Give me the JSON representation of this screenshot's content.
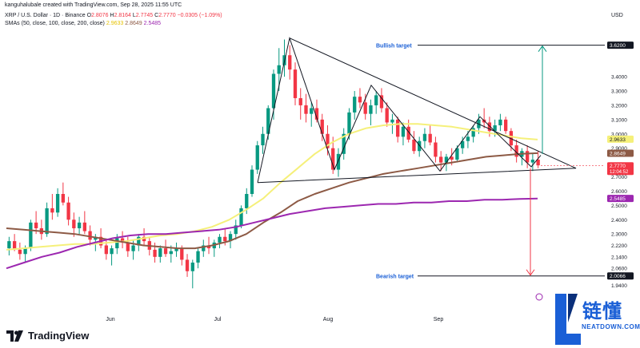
{
  "header": {
    "author_line": "kanguhalubale created with TradingView.com, Sep 28, 2025 11:55 UTC",
    "symbol": "XRP / U.S. Dollar · 1D · Binance",
    "o_label": "O",
    "o_value": "2.8076",
    "h_label": "H",
    "h_value": "2.8164",
    "l_label": "L",
    "l_value": "2.7745",
    "c_label": "C",
    "c_value": "2.7770",
    "change": "−0.0305 (−1.09%)",
    "sma_label": "SMAs (50, close, 100, close, 200, close)",
    "sma50_value": "2.9633",
    "sma100_value": "2.8649",
    "sma200_value": "2.5485"
  },
  "currency": "USD",
  "brand": {
    "name": "TradingView",
    "watermark_cn": "链懂",
    "watermark_en": "NEATDOWN.COM"
  },
  "colors": {
    "up": "#089981",
    "down": "#f23645",
    "sma50": "#f5f07a",
    "sma100": "#8d5a45",
    "sma200": "#9c27b0",
    "target_arrow_up": "#089981",
    "target_arrow_down": "#f23645"
  },
  "chart_data": {
    "type": "candlestick",
    "title": "",
    "y_axis": {
      "scale": "linear",
      "ticks": [
        "3.4000",
        "3.3000",
        "3.2000",
        "3.1000",
        "3.0000",
        "2.9000",
        "2.7000",
        "2.6000",
        "2.5000",
        "2.4000",
        "2.3000",
        "2.2200",
        "2.1400",
        "2.0600",
        "1.9400"
      ],
      "ylim": [
        1.86,
        3.78
      ]
    },
    "x_axis": {
      "ticks": [
        "Jun",
        "Jul",
        "Aug",
        "Sep"
      ]
    },
    "price_labels": [
      {
        "name": "bullish_target",
        "value": "3.6200",
        "text": "Bullish target",
        "price": 3.62,
        "style": "dark"
      },
      {
        "name": "sma50",
        "value": "2.9633",
        "price": 2.9633,
        "style": "yellow"
      },
      {
        "name": "sma100",
        "value": "2.8649",
        "price": 2.8649,
        "style": "brown"
      },
      {
        "name": "last_price",
        "value": "2.7770",
        "sub": "12:04:52",
        "price": 2.777,
        "style": "red"
      },
      {
        "name": "sma200",
        "value": "2.5485",
        "price": 2.5485,
        "style": "purple"
      },
      {
        "name": "bearish_target",
        "value": "2.0066",
        "text": "Bearish target",
        "price": 2.0066,
        "style": "dark"
      }
    ],
    "series": {
      "ohlc_daily_approx": [
        [
          2.2,
          2.28,
          2.15,
          2.25
        ],
        [
          2.25,
          2.3,
          2.18,
          2.19
        ],
        [
          2.19,
          2.24,
          2.12,
          2.16
        ],
        [
          2.16,
          2.22,
          2.1,
          2.2
        ],
        [
          2.2,
          2.4,
          2.18,
          2.38
        ],
        [
          2.38,
          2.46,
          2.3,
          2.34
        ],
        [
          2.34,
          2.4,
          2.26,
          2.3
        ],
        [
          2.3,
          2.52,
          2.28,
          2.48
        ],
        [
          2.48,
          2.58,
          2.4,
          2.45
        ],
        [
          2.45,
          2.62,
          2.42,
          2.58
        ],
        [
          2.58,
          2.66,
          2.5,
          2.52
        ],
        [
          2.52,
          2.56,
          2.36,
          2.4
        ],
        [
          2.4,
          2.45,
          2.28,
          2.34
        ],
        [
          2.34,
          2.42,
          2.3,
          2.38
        ],
        [
          2.38,
          2.46,
          2.3,
          2.32
        ],
        [
          2.32,
          2.36,
          2.22,
          2.26
        ],
        [
          2.26,
          2.3,
          2.18,
          2.28
        ],
        [
          2.28,
          2.34,
          2.2,
          2.22
        ],
        [
          2.22,
          2.26,
          2.12,
          2.16
        ],
        [
          2.16,
          2.22,
          2.08,
          2.2
        ],
        [
          2.2,
          2.3,
          2.16,
          2.27
        ],
        [
          2.27,
          2.32,
          2.2,
          2.24
        ],
        [
          2.24,
          2.28,
          2.14,
          2.18
        ],
        [
          2.18,
          2.26,
          2.12,
          2.22
        ],
        [
          2.22,
          2.3,
          2.18,
          2.28
        ],
        [
          2.28,
          2.34,
          2.22,
          2.25
        ],
        [
          2.25,
          2.28,
          2.15,
          2.19
        ],
        [
          2.19,
          2.24,
          2.1,
          2.14
        ],
        [
          2.14,
          2.22,
          2.1,
          2.2
        ],
        [
          2.2,
          2.26,
          2.14,
          2.16
        ],
        [
          2.16,
          2.22,
          2.1,
          2.18
        ],
        [
          2.18,
          2.24,
          2.14,
          2.2
        ],
        [
          2.2,
          2.22,
          2.08,
          2.12
        ],
        [
          2.12,
          2.16,
          2.0,
          2.04
        ],
        [
          2.04,
          2.12,
          1.92,
          2.1
        ],
        [
          2.1,
          2.2,
          2.06,
          2.18
        ],
        [
          2.18,
          2.26,
          2.14,
          2.22
        ],
        [
          2.22,
          2.28,
          2.16,
          2.2
        ],
        [
          2.2,
          2.26,
          2.14,
          2.24
        ],
        [
          2.24,
          2.3,
          2.2,
          2.28
        ],
        [
          2.28,
          2.34,
          2.22,
          2.25
        ],
        [
          2.25,
          2.32,
          2.2,
          2.3
        ],
        [
          2.3,
          2.4,
          2.26,
          2.36
        ],
        [
          2.36,
          2.5,
          2.34,
          2.48
        ],
        [
          2.48,
          2.62,
          2.44,
          2.58
        ],
        [
          2.58,
          2.78,
          2.56,
          2.75
        ],
        [
          2.75,
          2.95,
          2.72,
          2.92
        ],
        [
          2.92,
          3.05,
          2.86,
          3.0
        ],
        [
          3.0,
          3.2,
          2.96,
          3.18
        ],
        [
          3.18,
          3.45,
          3.1,
          3.42
        ],
        [
          3.42,
          3.6,
          3.3,
          3.48
        ],
        [
          3.48,
          3.66,
          3.4,
          3.55
        ],
        [
          3.55,
          3.62,
          3.38,
          3.45
        ],
        [
          3.45,
          3.5,
          3.2,
          3.25
        ],
        [
          3.25,
          3.32,
          3.1,
          3.2
        ],
        [
          3.2,
          3.28,
          3.08,
          3.14
        ],
        [
          3.14,
          3.22,
          3.05,
          3.18
        ],
        [
          3.18,
          3.24,
          3.08,
          3.1
        ],
        [
          3.1,
          3.14,
          2.95,
          3.0
        ],
        [
          3.0,
          3.06,
          2.85,
          2.9
        ],
        [
          2.9,
          2.98,
          2.72,
          2.75
        ],
        [
          2.75,
          2.9,
          2.7,
          2.86
        ],
        [
          2.86,
          3.04,
          2.82,
          3.0
        ],
        [
          3.0,
          3.18,
          2.96,
          3.15
        ],
        [
          3.15,
          3.3,
          3.1,
          3.26
        ],
        [
          3.26,
          3.32,
          3.18,
          3.22
        ],
        [
          3.22,
          3.28,
          3.1,
          3.14
        ],
        [
          3.14,
          3.24,
          3.06,
          3.2
        ],
        [
          3.2,
          3.3,
          3.14,
          3.27
        ],
        [
          3.27,
          3.32,
          3.15,
          3.18
        ],
        [
          3.18,
          3.22,
          3.05,
          3.08
        ],
        [
          3.08,
          3.14,
          3.0,
          3.1
        ],
        [
          3.1,
          3.12,
          2.94,
          2.98
        ],
        [
          2.98,
          3.08,
          2.92,
          3.05
        ],
        [
          3.05,
          3.1,
          2.94,
          2.96
        ],
        [
          2.96,
          3.02,
          2.86,
          2.88
        ],
        [
          2.88,
          2.98,
          2.84,
          2.95
        ],
        [
          2.95,
          3.04,
          2.9,
          3.0
        ],
        [
          3.0,
          3.06,
          2.92,
          2.94
        ],
        [
          2.94,
          2.98,
          2.8,
          2.84
        ],
        [
          2.84,
          2.88,
          2.74,
          2.8
        ],
        [
          2.8,
          2.86,
          2.74,
          2.84
        ],
        [
          2.84,
          2.9,
          2.78,
          2.82
        ],
        [
          2.82,
          2.92,
          2.8,
          2.9
        ],
        [
          2.9,
          2.98,
          2.86,
          2.95
        ],
        [
          2.95,
          3.02,
          2.9,
          2.98
        ],
        [
          2.98,
          3.06,
          2.94,
          3.04
        ],
        [
          3.04,
          3.14,
          3.0,
          3.1
        ],
        [
          3.1,
          3.18,
          3.04,
          3.08
        ],
        [
          3.08,
          3.12,
          2.98,
          3.02
        ],
        [
          3.02,
          3.1,
          2.98,
          3.06
        ],
        [
          3.06,
          3.14,
          3.02,
          3.1
        ],
        [
          3.1,
          3.12,
          3.0,
          3.02
        ],
        [
          3.02,
          3.04,
          2.88,
          2.92
        ],
        [
          2.92,
          2.96,
          2.8,
          2.84
        ],
        [
          2.84,
          2.9,
          2.78,
          2.88
        ],
        [
          2.88,
          2.92,
          2.76,
          2.8
        ],
        [
          2.8,
          2.86,
          2.74,
          2.82
        ],
        [
          2.82,
          2.88,
          2.76,
          2.78
        ]
      ]
    },
    "sma_curves_approx": {
      "sma50": [
        2.19,
        2.2,
        2.21,
        2.22,
        2.23,
        2.23,
        2.24,
        2.25,
        2.27,
        2.29,
        2.3,
        2.32,
        2.35,
        2.4,
        2.47,
        2.55,
        2.66,
        2.76,
        2.86,
        2.94,
        3.0,
        3.04,
        3.06,
        3.07,
        3.07,
        3.06,
        3.05,
        3.03,
        3.01,
        2.99,
        2.97,
        2.96
      ],
      "sma100": [
        2.34,
        2.33,
        2.32,
        2.31,
        2.3,
        2.28,
        2.26,
        2.24,
        2.22,
        2.21,
        2.2,
        2.2,
        2.22,
        2.25,
        2.3,
        2.38,
        2.45,
        2.53,
        2.58,
        2.62,
        2.66,
        2.69,
        2.72,
        2.74,
        2.76,
        2.78,
        2.8,
        2.82,
        2.84,
        2.85,
        2.86,
        2.865
      ],
      "sma200": [
        2.06,
        2.1,
        2.14,
        2.17,
        2.21,
        2.24,
        2.27,
        2.29,
        2.3,
        2.3,
        2.31,
        2.32,
        2.33,
        2.35,
        2.38,
        2.41,
        2.44,
        2.46,
        2.48,
        2.49,
        2.5,
        2.51,
        2.51,
        2.52,
        2.52,
        2.53,
        2.53,
        2.54,
        2.54,
        2.545,
        2.548
      ]
    },
    "annotations": [
      "Bullish target",
      "Bearish target"
    ],
    "grid": false,
    "legend_position": "top-left"
  }
}
